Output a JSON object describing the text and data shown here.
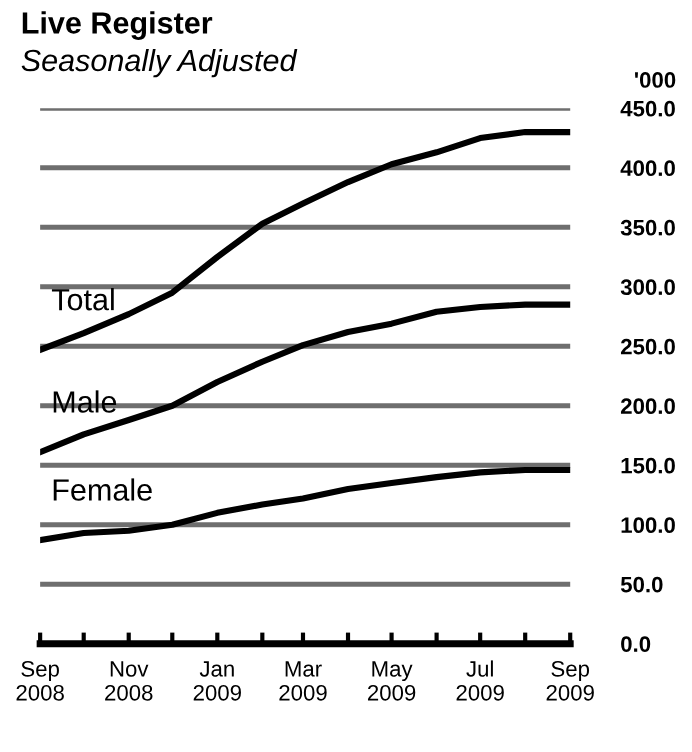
{
  "chart_data": {
    "type": "line",
    "title": "Live Register",
    "subtitle": "Seasonally Adjusted",
    "ylabel": "'000",
    "x": [
      "2008-09",
      "2008-10",
      "2008-11",
      "2008-12",
      "2009-01",
      "2009-02",
      "2009-03",
      "2009-04",
      "2009-05",
      "2009-06",
      "2009-07",
      "2009-08",
      "2009-09"
    ],
    "series": [
      {
        "name": "Total",
        "color": "#000000",
        "values": [
          247,
          261,
          277,
          295,
          325,
          353,
          370,
          388,
          403,
          413,
          425,
          430,
          430
        ]
      },
      {
        "name": "Male",
        "color": "#000000",
        "values": [
          161,
          176,
          188,
          200,
          220,
          237,
          251,
          262,
          269,
          279,
          283,
          285,
          285
        ]
      },
      {
        "name": "Female",
        "color": "#000000",
        "values": [
          87,
          93,
          95,
          100,
          110,
          117,
          122,
          130,
          135,
          140,
          144,
          146,
          146
        ]
      }
    ],
    "xlim": [
      "2008-09",
      "2009-09"
    ],
    "xticks": [
      {
        "value": "2008-09",
        "label": "Sep\n2008"
      },
      {
        "value": "2008-10",
        "label": null
      },
      {
        "value": "2008-11",
        "label": "Nov\n2008"
      },
      {
        "value": "2008-12",
        "label": null
      },
      {
        "value": "2009-01",
        "label": "Jan\n2009"
      },
      {
        "value": "2009-02",
        "label": null
      },
      {
        "value": "2009-03",
        "label": "Mar\n2009"
      },
      {
        "value": "2009-04",
        "label": null
      },
      {
        "value": "2009-05",
        "label": "May\n2009"
      },
      {
        "value": "2009-06",
        "label": null
      },
      {
        "value": "2009-07",
        "label": "Jul\n2009"
      },
      {
        "value": "2009-08",
        "label": null
      },
      {
        "value": "2009-09",
        "label": "Sep\n2009"
      }
    ],
    "ylim": [
      0,
      450
    ],
    "yticks": [
      {
        "value": 0,
        "label": "0.0"
      },
      {
        "value": 50,
        "label": "50.0"
      },
      {
        "value": 100,
        "label": "100.0"
      },
      {
        "value": 150,
        "label": "150.0"
      },
      {
        "value": 200,
        "label": "200.0"
      },
      {
        "value": 250,
        "label": "250.0"
      },
      {
        "value": 300,
        "label": "300.0"
      },
      {
        "value": 350,
        "label": "350.0"
      },
      {
        "value": 400,
        "label": "400.0"
      },
      {
        "value": 450,
        "label": "450.0"
      }
    ],
    "grid": "y",
    "legend": false,
    "marker": "none",
    "line_style": "solid"
  }
}
